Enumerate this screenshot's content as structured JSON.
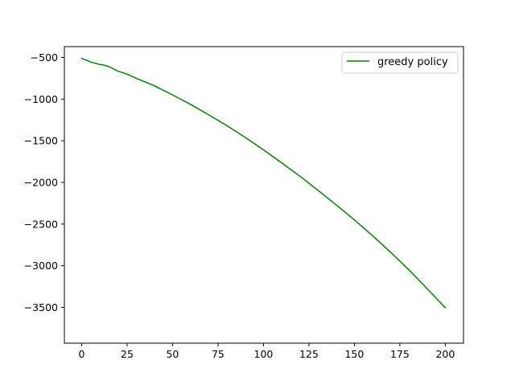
{
  "chart_data": {
    "type": "line",
    "title": "",
    "xlabel": "",
    "ylabel": "",
    "xlim": [
      -9.5,
      210.0
    ],
    "ylim": [
      -3930,
      -370
    ],
    "x_ticks": [
      0,
      25,
      50,
      75,
      100,
      125,
      150,
      175,
      200
    ],
    "x_tick_labels": [
      "0",
      "25",
      "50",
      "75",
      "100",
      "125",
      "150",
      "175",
      "200"
    ],
    "y_ticks": [
      -500,
      -1000,
      -1500,
      -2000,
      -2500,
      -3000,
      -3500
    ],
    "y_tick_labels": [
      "−500",
      "−1000",
      "−1500",
      "−2000",
      "−2500",
      "−3000",
      "−3500"
    ],
    "grid": false,
    "legend_position": "upper-right",
    "series": [
      {
        "name": "greedy policy",
        "color": "#008000",
        "x": [
          0,
          5,
          10,
          12,
          15,
          20,
          25,
          30,
          35,
          40,
          50,
          60,
          70,
          80,
          90,
          100,
          110,
          120,
          130,
          140,
          150,
          160,
          170,
          180,
          190,
          200
        ],
        "y": [
          -510,
          -555,
          -585,
          -590,
          -610,
          -665,
          -700,
          -750,
          -795,
          -840,
          -950,
          -1065,
          -1190,
          -1320,
          -1460,
          -1610,
          -1765,
          -1925,
          -2095,
          -2270,
          -2450,
          -2640,
          -2840,
          -3050,
          -3275,
          -3505
        ]
      }
    ]
  }
}
